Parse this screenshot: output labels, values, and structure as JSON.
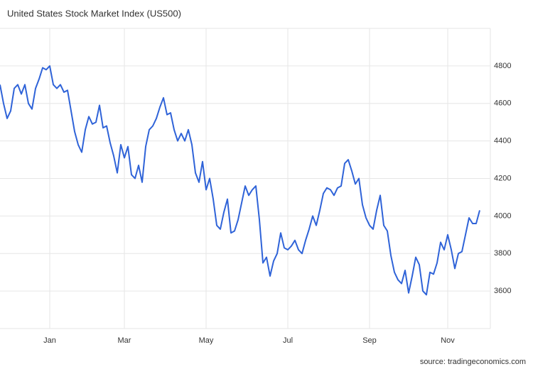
{
  "chart_data": {
    "type": "line",
    "title": "United States Stock Market Index (US500)",
    "source": "source: tradingeconomics.com",
    "categories": [
      null,
      null,
      null,
      null,
      null,
      null,
      null,
      null,
      null,
      null,
      null,
      null,
      null,
      null,
      "Jan",
      null,
      null,
      null,
      null,
      null,
      null,
      null,
      null,
      null,
      null,
      null,
      null,
      null,
      null,
      null,
      null,
      null,
      null,
      null,
      null,
      "Mar",
      null,
      null,
      null,
      null,
      null,
      null,
      null,
      null,
      null,
      null,
      null,
      null,
      null,
      null,
      null,
      null,
      null,
      null,
      null,
      null,
      null,
      null,
      "May",
      null,
      null,
      null,
      null,
      null,
      null,
      null,
      null,
      null,
      null,
      null,
      null,
      null,
      null,
      null,
      null,
      null,
      null,
      null,
      null,
      null,
      null,
      "Jul",
      null,
      null,
      null,
      null,
      null,
      null,
      null,
      null,
      null,
      null,
      null,
      null,
      null,
      null,
      null,
      null,
      null,
      null,
      null,
      null,
      null,
      null,
      "Sep",
      null,
      null,
      null,
      null,
      null,
      null,
      null,
      null,
      null,
      null,
      null,
      null,
      null,
      null,
      null,
      null,
      null,
      null,
      null,
      null,
      null,
      "Nov",
      null,
      null,
      null,
      null,
      null,
      null,
      null,
      null,
      null
    ],
    "values": [
      4700,
      4600,
      4520,
      4560,
      4680,
      4700,
      4650,
      4700,
      4600,
      4570,
      4680,
      4730,
      4790,
      4780,
      4800,
      4700,
      4680,
      4700,
      4660,
      4670,
      4560,
      4450,
      4380,
      4340,
      4460,
      4530,
      4490,
      4500,
      4590,
      4470,
      4480,
      4390,
      4320,
      4230,
      4380,
      4310,
      4370,
      4220,
      4200,
      4270,
      4180,
      4370,
      4460,
      4480,
      4520,
      4580,
      4630,
      4540,
      4550,
      4460,
      4400,
      4440,
      4400,
      4460,
      4380,
      4230,
      4180,
      4290,
      4140,
      4200,
      4090,
      3950,
      3930,
      4020,
      4090,
      3910,
      3920,
      3980,
      4070,
      4160,
      4110,
      4140,
      4160,
      3980,
      3750,
      3780,
      3680,
      3760,
      3800,
      3910,
      3830,
      3820,
      3840,
      3870,
      3820,
      3800,
      3870,
      3930,
      4000,
      3950,
      4030,
      4120,
      4150,
      4140,
      4110,
      4150,
      4160,
      4280,
      4300,
      4240,
      4170,
      4200,
      4060,
      3990,
      3950,
      3930,
      4030,
      4110,
      3950,
      3920,
      3790,
      3700,
      3660,
      3640,
      3710,
      3590,
      3680,
      3780,
      3740,
      3600,
      3580,
      3700,
      3690,
      3750,
      3860,
      3820,
      3900,
      3820,
      3720,
      3800,
      3810,
      3900,
      3990,
      3960,
      3960,
      4030
    ],
    "color": "#2f63d8",
    "ylim": [
      3400,
      5000
    ],
    "yticks": [
      3600,
      3800,
      4000,
      4200,
      4400,
      4600,
      4800
    ],
    "grid": true
  }
}
